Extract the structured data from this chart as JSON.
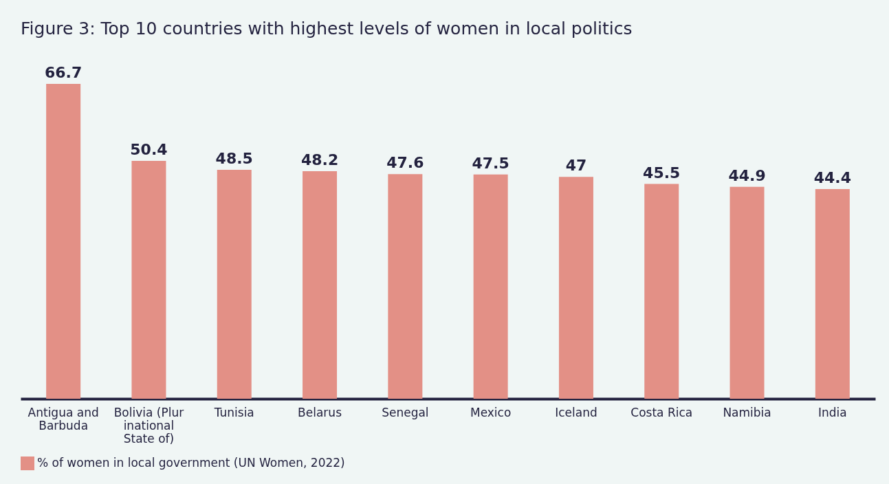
{
  "chart_data": {
    "type": "bar",
    "title": "Figure 3: Top 10 countries with highest levels of women in local politics",
    "categories": [
      "Antigua and Barbuda",
      "Bolivia (Plurinational State of)",
      "Tunisia",
      "Belarus",
      "Senegal",
      "Mexico",
      "Iceland",
      "Costa Rica",
      "Namibia",
      "India"
    ],
    "series": [
      {
        "name": "% of women in local government (UN Women, 2022)",
        "color": "#e39086",
        "values": [
          66.7,
          50.4,
          48.5,
          48.2,
          47.6,
          47.5,
          47,
          45.5,
          44.9,
          44.4
        ]
      }
    ],
    "data_labels": true,
    "legend": "bottom",
    "grid": false
  }
}
